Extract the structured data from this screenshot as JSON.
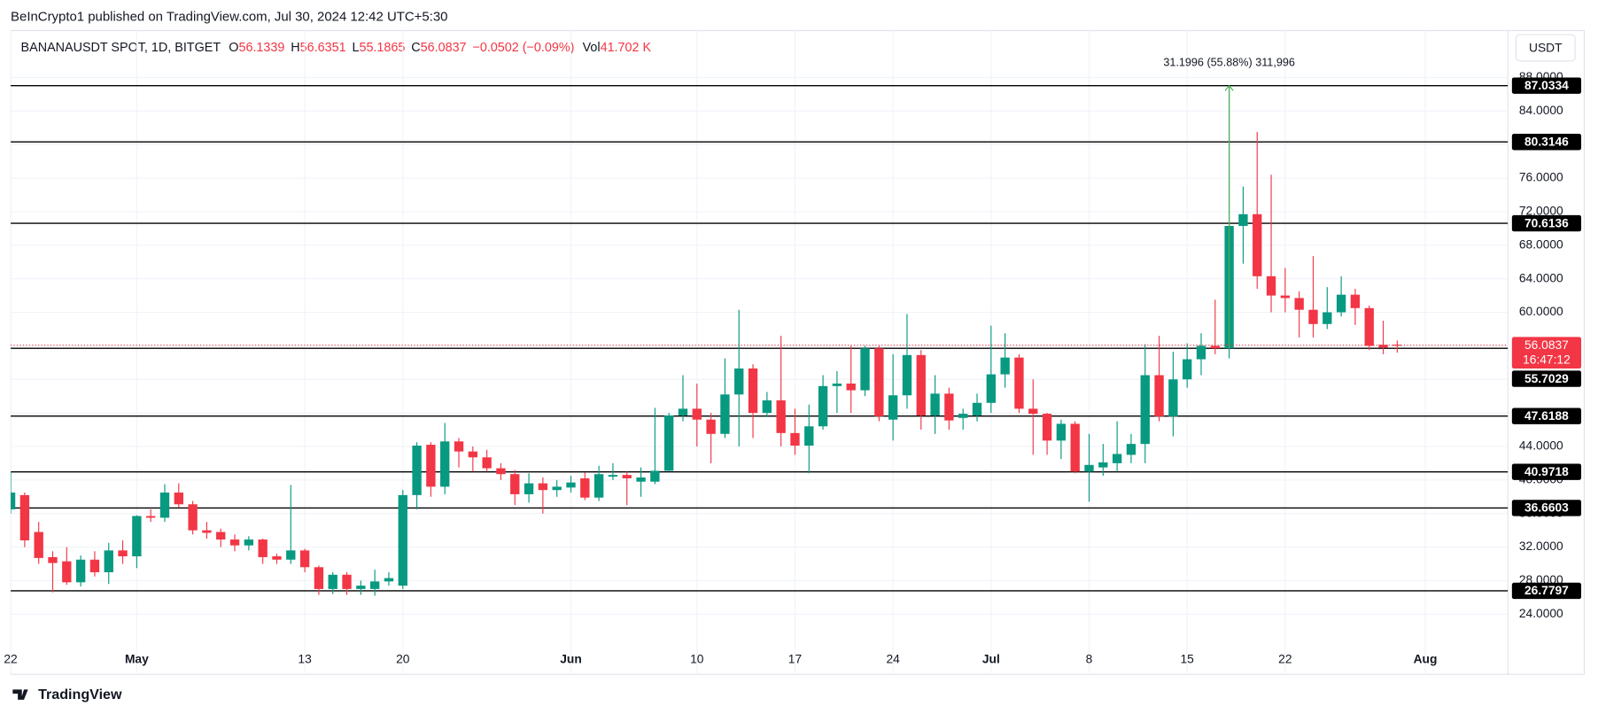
{
  "header": {
    "title": "BeInCrypto1 published on TradingView.com, Jul 30, 2024 12:42 UTC+5:30",
    "currency": "USDT",
    "footer": "TradingView"
  },
  "chart_data": {
    "type": "candlestick",
    "symbol": "BANANAUSDT SPOT, 1D, BITGET",
    "legend_labels": {
      "open": "O",
      "high": "H",
      "low": "L",
      "close": "C",
      "volume": "Vol"
    },
    "change": "−0.0502 (−0.09%)",
    "volume": "41.702 K",
    "countdown": "16:47:12",
    "measurement": "31.1996 (55.88%) 311,996",
    "up_color": "#089981",
    "down_color": "#f23645",
    "level_color": "#000000",
    "grid": true,
    "xlim": [
      0,
      106.9
    ],
    "ylim": [
      16.83,
      93.6
    ],
    "xticks": [
      {
        "value": 0,
        "label": "22"
      },
      {
        "value": 9,
        "label": "May"
      },
      {
        "value": 21,
        "label": "13"
      },
      {
        "value": 28,
        "label": "20"
      },
      {
        "value": 40,
        "label": "Jun"
      },
      {
        "value": 49,
        "label": "10"
      },
      {
        "value": 56,
        "label": "17"
      },
      {
        "value": 63,
        "label": "24"
      },
      {
        "value": 70,
        "label": "Jul"
      },
      {
        "value": 77,
        "label": "8"
      },
      {
        "value": 84,
        "label": "15"
      },
      {
        "value": 91,
        "label": "22"
      },
      {
        "value": 101,
        "label": "Aug"
      }
    ],
    "yticks": [
      {
        "value": 24,
        "label": "24.0000"
      },
      {
        "value": 28,
        "label": "28.0000"
      },
      {
        "value": 32,
        "label": "32.0000"
      },
      {
        "value": 36,
        "label": "36.0000"
      },
      {
        "value": 40,
        "label": "40.0000"
      },
      {
        "value": 44,
        "label": "44.0000"
      },
      {
        "value": 48,
        "label": "48.0000"
      },
      {
        "value": 52,
        "label": "52.0000"
      },
      {
        "value": 56,
        "label": "56.0000"
      },
      {
        "value": 60,
        "label": "60.0000"
      },
      {
        "value": 64,
        "label": "64.0000"
      },
      {
        "value": 68,
        "label": "68.0000"
      },
      {
        "value": 72,
        "label": "72.0000"
      },
      {
        "value": 76,
        "label": "76.0000"
      },
      {
        "value": 80,
        "label": "80.0000"
      },
      {
        "value": 84,
        "label": "84.0000"
      },
      {
        "value": 88,
        "label": "88.0000"
      }
    ],
    "levels": [
      87.0334,
      80.3146,
      70.6136,
      55.7029,
      47.6188,
      40.9718,
      36.6603,
      26.7797
    ],
    "measure_index": 87,
    "ohlc": [
      [
        36.5,
        41,
        36,
        38.5
      ],
      [
        38.2,
        38.5,
        32,
        32.8
      ],
      [
        33.8,
        35,
        30,
        30.7
      ],
      [
        30.8,
        31.5,
        26.6,
        30.1
      ],
      [
        30.3,
        32,
        27.5,
        27.8
      ],
      [
        27.8,
        31,
        27.3,
        30.5
      ],
      [
        30.5,
        31.5,
        28.5,
        29
      ],
      [
        29,
        32.5,
        27.6,
        31.6
      ],
      [
        31.6,
        32.8,
        30,
        30.9
      ],
      [
        30.9,
        35.8,
        29.5,
        35.7
      ],
      [
        35.7,
        36.5,
        35,
        35.5
      ],
      [
        35.5,
        39.5,
        35,
        38.5
      ],
      [
        38.5,
        39.6,
        36.7,
        37.1
      ],
      [
        37.1,
        37.5,
        33.5,
        34
      ],
      [
        34,
        35,
        33,
        33.7
      ],
      [
        33.8,
        34.2,
        32,
        32.9
      ],
      [
        32.9,
        33.5,
        31.5,
        32.2
      ],
      [
        32.2,
        33.3,
        31.6,
        32.9
      ],
      [
        32.9,
        33,
        30,
        30.8
      ],
      [
        30.9,
        31.2,
        30,
        30.5
      ],
      [
        30.5,
        39.4,
        30,
        31.6
      ],
      [
        31.6,
        31.8,
        29,
        29.6
      ],
      [
        29.6,
        29.8,
        26.3,
        27
      ],
      [
        27,
        29,
        26.4,
        28.7
      ],
      [
        28.7,
        29,
        26.3,
        27
      ],
      [
        27,
        28,
        26.3,
        27.4
      ],
      [
        27,
        29.3,
        26.2,
        27.9
      ],
      [
        27.9,
        29,
        27.4,
        28.3
      ],
      [
        27.4,
        38.8,
        27,
        38.2
      ],
      [
        38.2,
        44.5,
        36.5,
        44.1
      ],
      [
        44.2,
        44.5,
        38,
        39.2
      ],
      [
        39.2,
        46.8,
        38.3,
        44.6
      ],
      [
        44.6,
        45,
        41.5,
        43.4
      ],
      [
        43.4,
        44,
        41,
        42.7
      ],
      [
        42.7,
        43.6,
        41,
        41.4
      ],
      [
        41.4,
        42,
        40,
        40.7
      ],
      [
        40.7,
        41.2,
        37,
        38.3
      ],
      [
        38.3,
        40.8,
        37.3,
        39.6
      ],
      [
        39.6,
        40.3,
        36,
        38.8
      ],
      [
        38.8,
        40,
        38,
        39.2
      ],
      [
        39.1,
        40.5,
        38.5,
        39.7
      ],
      [
        40.2,
        40.9,
        37.6,
        37.9
      ],
      [
        37.9,
        41.7,
        37.5,
        40.7
      ],
      [
        40.4,
        42,
        40,
        40.6
      ],
      [
        40.6,
        41,
        37,
        40.2
      ],
      [
        39.8,
        41.5,
        38,
        40.3
      ],
      [
        39.8,
        48.6,
        39.5,
        41.1
      ],
      [
        41.1,
        48,
        41,
        47.7
      ],
      [
        47.7,
        52.5,
        47,
        48.5
      ],
      [
        48.5,
        51.5,
        44,
        47.2
      ],
      [
        47.2,
        48,
        42,
        45.5
      ],
      [
        45.5,
        54.5,
        45,
        50.2
      ],
      [
        50.2,
        60.3,
        44,
        53.3
      ],
      [
        53.3,
        53.8,
        45,
        48
      ],
      [
        48,
        50.5,
        47.5,
        49.5
      ],
      [
        49.5,
        57.2,
        44,
        45.6
      ],
      [
        45.6,
        48.5,
        43,
        44.1
      ],
      [
        44.1,
        49,
        40.8,
        46.4
      ],
      [
        46.4,
        52.5,
        46,
        51.2
      ],
      [
        51.2,
        53,
        48,
        51.5
      ],
      [
        51.5,
        56,
        48,
        50.7
      ],
      [
        50.7,
        56,
        50,
        55.7
      ],
      [
        55.7,
        56,
        47,
        47.6
      ],
      [
        47.2,
        55,
        44.7,
        50.1
      ],
      [
        50.1,
        59.8,
        48.5,
        54.9
      ],
      [
        54.9,
        55.5,
        46,
        47.7
      ],
      [
        47.7,
        52.5,
        45.5,
        50.3
      ],
      [
        50.3,
        51,
        46,
        47.1
      ],
      [
        47.4,
        48.5,
        46,
        47.9
      ],
      [
        47.7,
        50.3,
        47,
        49.2
      ],
      [
        49.2,
        58.4,
        48,
        52.6
      ],
      [
        52.6,
        57.5,
        51,
        54.6
      ],
      [
        54.6,
        55,
        48,
        48.5
      ],
      [
        48.5,
        52,
        43,
        47.9
      ],
      [
        47.9,
        48,
        43,
        44.7
      ],
      [
        44.7,
        47.2,
        42.5,
        46.7
      ],
      [
        46.7,
        47,
        40.8,
        41
      ],
      [
        41,
        45.5,
        37.4,
        41.8
      ],
      [
        41.5,
        44.3,
        40.5,
        42.1
      ],
      [
        42,
        47,
        41,
        43.1
      ],
      [
        43,
        45.5,
        42,
        44.3
      ],
      [
        44.3,
        56.2,
        42,
        52.5
      ],
      [
        52.5,
        57.2,
        47,
        47.6
      ],
      [
        47.6,
        55.3,
        45.2,
        52
      ],
      [
        52,
        56.3,
        51,
        54.4
      ],
      [
        54.4,
        57.5,
        52.5,
        56
      ],
      [
        56,
        61.5,
        55,
        55.7
      ],
      [
        55.7,
        87.0334,
        54.5,
        70.3
      ],
      [
        70.3,
        75,
        65.8,
        71.7
      ],
      [
        71.7,
        81.5,
        62.8,
        64.3
      ],
      [
        64.3,
        76.4,
        60,
        62
      ],
      [
        62,
        65.3,
        60,
        61.7
      ],
      [
        61.7,
        62.5,
        57,
        60.3
      ],
      [
        60.3,
        66.7,
        57,
        58.6
      ],
      [
        58.6,
        63,
        58,
        60
      ],
      [
        60,
        64.3,
        59.5,
        62.1
      ],
      [
        62.1,
        62.8,
        58.5,
        60.5
      ],
      [
        60.5,
        60.8,
        55.5,
        56
      ],
      [
        56.13,
        59,
        55,
        55.8
      ],
      [
        56.1339,
        56.6351,
        55.1865,
        56.0837
      ]
    ]
  }
}
